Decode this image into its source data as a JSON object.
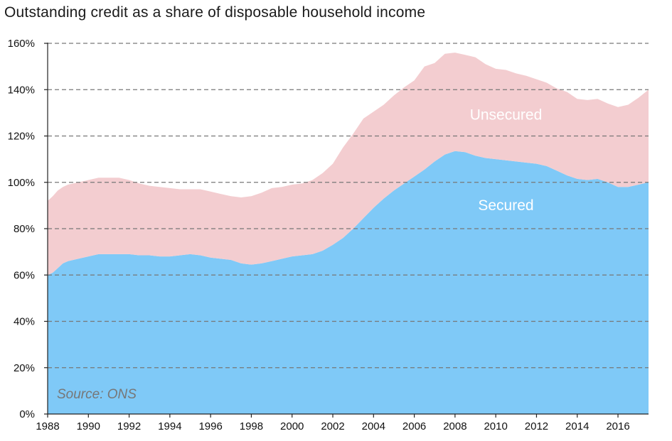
{
  "chart_data": {
    "type": "area",
    "stacked": true,
    "title": "Outstanding credit as a share of disposable household income",
    "xlabel": "",
    "ylabel": "",
    "xlim": [
      1988,
      2017.5
    ],
    "ylim": [
      0,
      160
    ],
    "y_ticks": [
      "0%",
      "20%",
      "40%",
      "60%",
      "80%",
      "100%",
      "120%",
      "140%",
      "160%"
    ],
    "x_ticks": [
      "1988",
      "1990",
      "1992",
      "1994",
      "1996",
      "1998",
      "2000",
      "2002",
      "2004",
      "2006",
      "2008",
      "2010",
      "2012",
      "2014",
      "2016"
    ],
    "grid": "horizontal dashed",
    "source": "Source: ONS",
    "x": [
      1988,
      1988.25,
      1988.5,
      1988.75,
      1989,
      1989.5,
      1990,
      1990.5,
      1991,
      1991.5,
      1992,
      1992.5,
      1993,
      1993.5,
      1994,
      1994.5,
      1995,
      1995.5,
      1996,
      1996.5,
      1997,
      1997.5,
      1998,
      1998.5,
      1999,
      1999.5,
      2000,
      2000.5,
      2001,
      2001.5,
      2002,
      2002.5,
      2003,
      2003.5,
      2004,
      2004.5,
      2005,
      2005.5,
      2006,
      2006.5,
      2007,
      2007.5,
      2008,
      2008.5,
      2009,
      2009.5,
      2010,
      2010.5,
      2011,
      2011.5,
      2012,
      2012.5,
      2013,
      2013.5,
      2014,
      2014.5,
      2015,
      2015.5,
      2016,
      2016.5,
      2017,
      2017.5
    ],
    "series": [
      {
        "name": "Secured",
        "color": "#7fc9f7",
        "values": [
          60,
          61,
          63,
          65,
          66,
          67,
          68,
          69,
          69,
          69,
          69,
          68.5,
          68.5,
          68,
          68,
          68.5,
          69,
          68.5,
          67.5,
          67,
          66.5,
          65,
          64.5,
          65,
          66,
          67,
          68,
          68.5,
          69,
          70.5,
          73,
          76,
          80,
          84.5,
          89,
          93,
          96.5,
          99.5,
          102.5,
          105.5,
          109,
          112,
          113.5,
          113,
          111.5,
          110.5,
          110,
          109.5,
          109,
          108.5,
          108,
          107,
          105,
          103,
          101.5,
          101,
          101.5,
          100,
          98,
          98,
          99,
          100
        ]
      },
      {
        "name": "Unsecured",
        "color": "#f3cdd0",
        "values": [
          32,
          33,
          33.5,
          33,
          33,
          33,
          33,
          33,
          33,
          33,
          32,
          31,
          30,
          30,
          29.5,
          28.5,
          28,
          28.5,
          28.5,
          28,
          27.5,
          28.5,
          29.5,
          30.5,
          31.5,
          31,
          31,
          31,
          32,
          33.5,
          35,
          39,
          41,
          43,
          41.5,
          40.5,
          41,
          41.5,
          41.5,
          44.5,
          42.5,
          43.5,
          42.5,
          42,
          42.5,
          40.5,
          39,
          39,
          38,
          37.5,
          36.5,
          36,
          35.5,
          36,
          34.5,
          34.5,
          34.5,
          34,
          34.5,
          35.5,
          37.5,
          40
        ]
      }
    ]
  }
}
